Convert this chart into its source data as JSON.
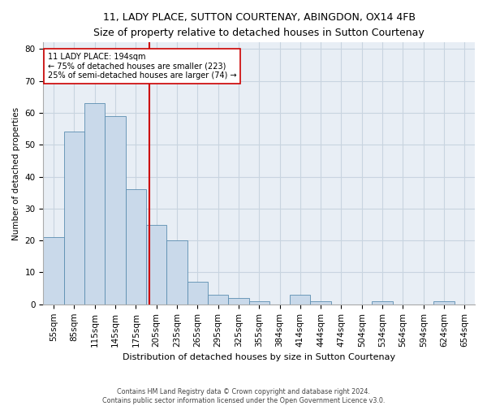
{
  "title": "11, LADY PLACE, SUTTON COURTENAY, ABINGDON, OX14 4FB",
  "subtitle": "Size of property relative to detached houses in Sutton Courtenay",
  "xlabel": "Distribution of detached houses by size in Sutton Courtenay",
  "ylabel": "Number of detached properties",
  "footer1": "Contains HM Land Registry data © Crown copyright and database right 2024.",
  "footer2": "Contains public sector information licensed under the Open Government Licence v3.0.",
  "bar_labels": [
    "55sqm",
    "85sqm",
    "115sqm",
    "145sqm",
    "175sqm",
    "205sqm",
    "235sqm",
    "265sqm",
    "295sqm",
    "325sqm",
    "355sqm",
    "384sqm",
    "414sqm",
    "444sqm",
    "474sqm",
    "504sqm",
    "534sqm",
    "564sqm",
    "594sqm",
    "624sqm",
    "654sqm"
  ],
  "bar_values": [
    21,
    54,
    63,
    59,
    36,
    25,
    20,
    7,
    3,
    2,
    1,
    0,
    3,
    1,
    0,
    0,
    1,
    0,
    0,
    1,
    0
  ],
  "bar_color": "#c9d9ea",
  "bar_edge_color": "#5b8db0",
  "vline_x": 4.65,
  "vline_color": "#cc0000",
  "annotation_text": "11 LADY PLACE: 194sqm\n← 75% of detached houses are smaller (223)\n25% of semi-detached houses are larger (74) →",
  "annotation_box_color": "#ffffff",
  "annotation_box_edge": "#cc0000",
  "ylim": [
    0,
    82
  ],
  "yticks": [
    0,
    10,
    20,
    30,
    40,
    50,
    60,
    70,
    80
  ],
  "grid_color": "#c8d4e0",
  "background_color": "#e8eef5",
  "title_fontsize": 9.0,
  "subtitle_fontsize": 8.5,
  "ylabel_fontsize": 7.5,
  "xlabel_fontsize": 8.0,
  "tick_fontsize": 7.5,
  "annot_fontsize": 7.0,
  "footer_fontsize": 5.8
}
